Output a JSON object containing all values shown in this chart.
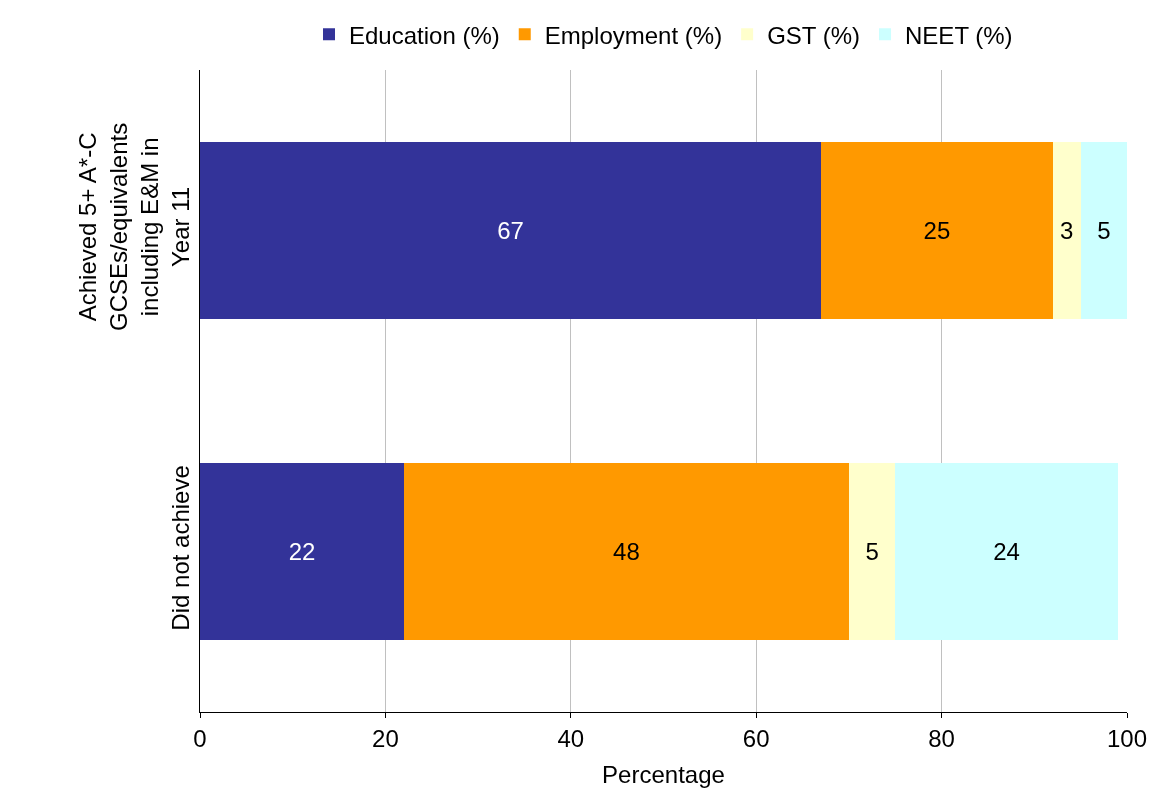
{
  "chart_data": {
    "type": "bar",
    "orientation": "horizontal",
    "stacked": true,
    "xlabel": "Percentage",
    "categories": [
      "Achieved 5+ A*-C GCSEs/equivalents including E&M in Year 11",
      "Did not achieve"
    ],
    "series": [
      {
        "name": "Education (%)",
        "color": "#333399",
        "values": [
          67,
          22
        ]
      },
      {
        "name": "Employment (%)",
        "color": "#ff9900",
        "values": [
          25,
          48
        ]
      },
      {
        "name": "GST (%)",
        "color": "#ffffcc",
        "values": [
          3,
          5
        ]
      },
      {
        "name": "NEET (%)",
        "color": "#ccffff",
        "values": [
          5,
          24
        ]
      }
    ],
    "xlim": [
      0,
      100
    ],
    "xticks": [
      0,
      20,
      40,
      60,
      80,
      100
    ],
    "grid": "x",
    "legend": "top",
    "data_labels": true
  }
}
